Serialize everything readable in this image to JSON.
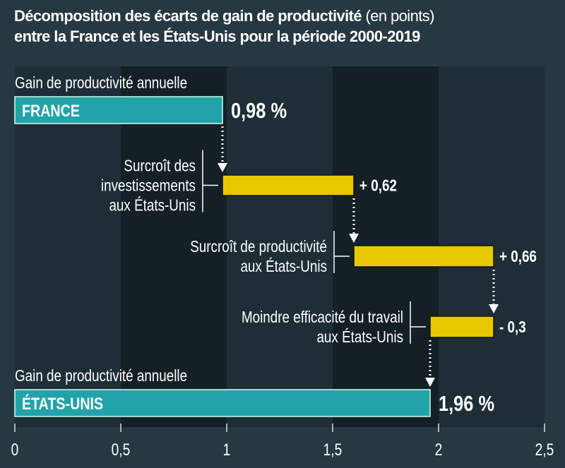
{
  "chart_data": {
    "type": "waterfall",
    "title": "Décomposition des écarts de gain de productivité",
    "title_unit": "(en points)",
    "subtitle": "entre la France et les États-Unis pour la période 2000-2019",
    "xlim": [
      0,
      2.5
    ],
    "x_ticks": [
      "0",
      "0,5",
      "1",
      "1,5",
      "2",
      "2,5"
    ],
    "x_tick_values": [
      0,
      0.5,
      1,
      1.5,
      2,
      2.5
    ],
    "grid": "alternating bands",
    "colors": {
      "total": "#22a3a9",
      "step": "#e8c800",
      "band_light": "#1f2e36",
      "band_dark": "#152026",
      "background": "#263841"
    },
    "steps": [
      {
        "kind": "total",
        "header": "Gain de productivité annuelle",
        "bar_label": "FRANCE",
        "start": 0,
        "end": 0.98,
        "value_label": "0,98 %"
      },
      {
        "kind": "step",
        "label_lines": [
          "Surcroît des",
          "investissements",
          "aux États-Unis"
        ],
        "start": 0.98,
        "end": 1.6,
        "value_label": "+ 0,62"
      },
      {
        "kind": "step",
        "label_lines": [
          "Surcroît de productivité",
          "aux États-Unis"
        ],
        "start": 1.6,
        "end": 2.26,
        "value_label": "+ 0,66"
      },
      {
        "kind": "step",
        "label_lines": [
          "Moindre efficacité du travail",
          "aux États-Unis"
        ],
        "start": 2.26,
        "end": 1.96,
        "value_label": "- 0,3"
      },
      {
        "kind": "total",
        "header": "Gain de productivité annuelle",
        "bar_label": "ÉTATS-UNIS",
        "start": 0,
        "end": 1.96,
        "value_label": "1,96 %"
      }
    ]
  }
}
